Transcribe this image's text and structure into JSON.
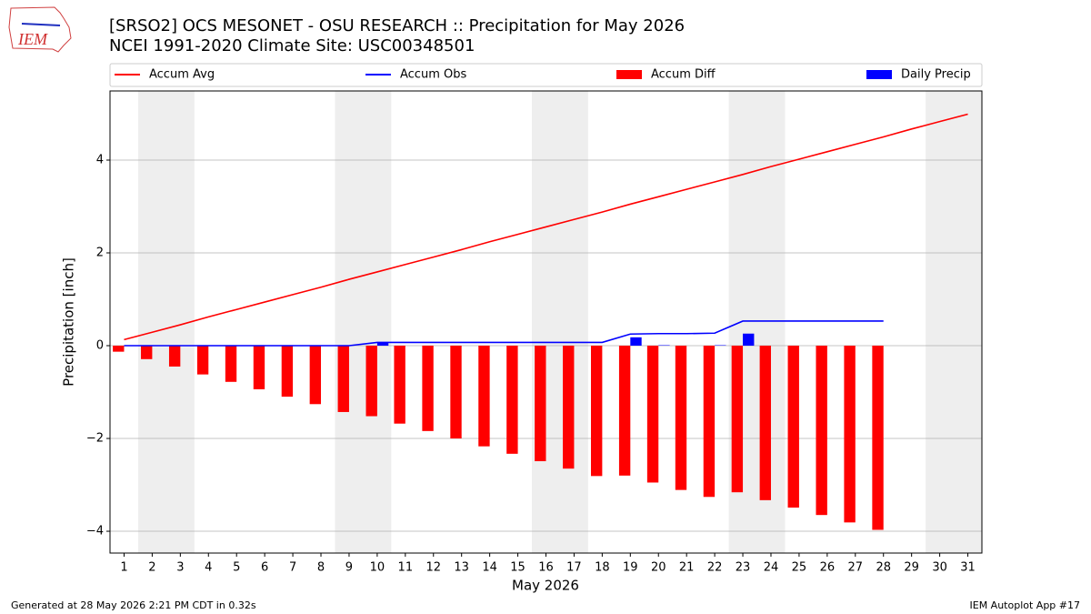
{
  "chart_data": {
    "type": "combo",
    "title": "[SRSO2] OCS MESONET - OSU RESEARCH :: Precipitation for May 2026",
    "subtitle": "NCEI 1991-2020 Climate Site: USC00348501",
    "logo": "IEM",
    "footer_left": "Generated at 28 May 2026 2:21 PM CDT in 0.32s",
    "footer_right": "IEM Autoplot App #17",
    "xlabel": "May 2026",
    "ylabel": "Precipitation [inch]",
    "x": [
      1,
      2,
      3,
      4,
      5,
      6,
      7,
      8,
      9,
      10,
      11,
      12,
      13,
      14,
      15,
      16,
      17,
      18,
      19,
      20,
      21,
      22,
      23,
      24,
      25,
      26,
      27,
      28,
      29,
      30,
      31
    ],
    "xlim": [
      0.5,
      31.5
    ],
    "xticks": [
      1,
      2,
      3,
      4,
      5,
      6,
      7,
      8,
      9,
      10,
      11,
      12,
      13,
      14,
      15,
      16,
      17,
      18,
      19,
      20,
      21,
      22,
      23,
      24,
      25,
      26,
      27,
      28,
      29,
      30,
      31
    ],
    "ylim": [
      -4.47,
      5.49
    ],
    "yticks": [
      {
        "value": -4,
        "label": "−4"
      },
      {
        "value": -2,
        "label": "−2"
      },
      0,
      2,
      4
    ],
    "grid": true,
    "shaded_ranges": [
      [
        1.5,
        3.5
      ],
      [
        8.5,
        10.5
      ],
      [
        15.5,
        17.5
      ],
      [
        22.5,
        24.5
      ],
      [
        29.5,
        31.5
      ]
    ],
    "series": [
      {
        "name": "Accum Avg",
        "kind": "line",
        "color": "#ff0000",
        "values": [
          0.13,
          0.29,
          0.45,
          0.62,
          0.78,
          0.94,
          1.1,
          1.26,
          1.43,
          1.59,
          1.75,
          1.91,
          2.07,
          2.24,
          2.4,
          2.56,
          2.72,
          2.88,
          3.05,
          3.21,
          3.37,
          3.53,
          3.69,
          3.86,
          4.02,
          4.18,
          4.34,
          4.5,
          4.67,
          4.83,
          4.99
        ]
      },
      {
        "name": "Accum Obs",
        "kind": "line",
        "color": "#0000ff",
        "values": [
          0,
          0,
          0,
          0,
          0,
          0,
          0,
          0,
          0,
          0.07,
          0.07,
          0.07,
          0.07,
          0.07,
          0.07,
          0.07,
          0.07,
          0.07,
          0.25,
          0.26,
          0.26,
          0.27,
          0.53,
          0.53,
          0.53,
          0.53,
          0.53,
          0.53,
          null,
          null,
          null
        ]
      },
      {
        "name": "Accum Diff",
        "kind": "bar",
        "side": "left",
        "color": "#ff0000",
        "values": [
          -0.13,
          -0.29,
          -0.45,
          -0.62,
          -0.78,
          -0.94,
          -1.1,
          -1.26,
          -1.43,
          -1.52,
          -1.68,
          -1.84,
          -2.0,
          -2.17,
          -2.33,
          -2.49,
          -2.65,
          -2.81,
          -2.8,
          -2.95,
          -3.11,
          -3.26,
          -3.16,
          -3.33,
          -3.49,
          -3.65,
          -3.81,
          -3.97,
          null,
          null,
          null
        ]
      },
      {
        "name": "Daily Precip",
        "kind": "bar",
        "side": "right",
        "color": "#0000ff",
        "values": [
          0,
          0,
          0,
          0,
          0,
          0,
          0,
          0,
          0,
          0.07,
          0,
          0,
          0,
          0,
          0,
          0,
          0,
          0,
          0.18,
          0.01,
          0,
          0.01,
          0.26,
          0,
          0,
          0,
          0,
          0,
          null,
          null,
          null
        ]
      }
    ]
  }
}
